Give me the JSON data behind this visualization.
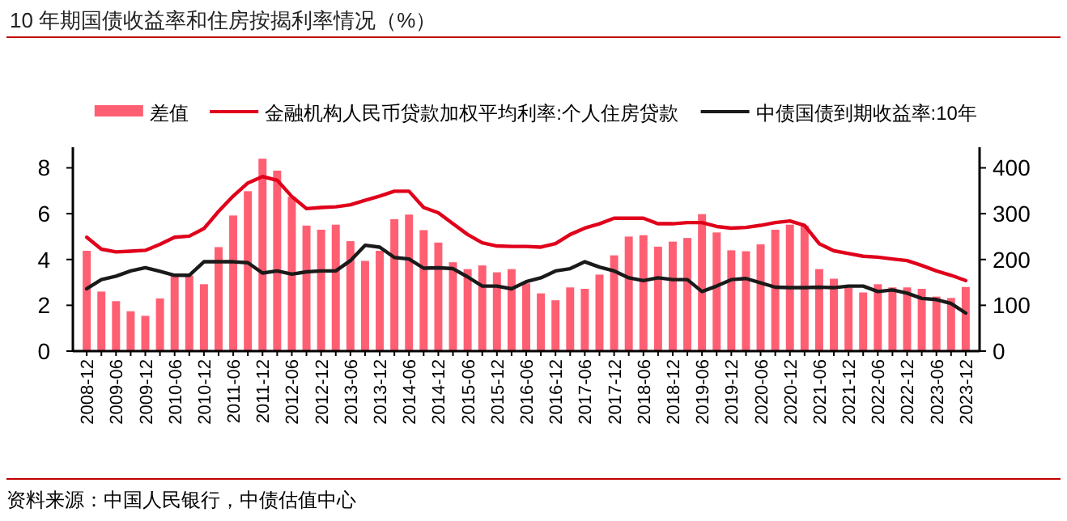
{
  "chart_data": {
    "type": "bar",
    "title": "10 年期国债收益率和住房按揭利率情况（%）",
    "annotations": [
      "资料来源：中国人民银行，中债估值中心"
    ],
    "categories": [
      "2008-12",
      null,
      "2009-06",
      null,
      "2009-12",
      null,
      "2010-06",
      null,
      "2010-12",
      null,
      "2011-06",
      null,
      "2011-12",
      null,
      "2012-06",
      null,
      "2012-12",
      null,
      "2013-06",
      null,
      "2013-12",
      null,
      "2014-06",
      null,
      "2014-12",
      null,
      "2015-06",
      null,
      "2015-12",
      null,
      "2016-06",
      null,
      "2016-12",
      null,
      "2017-06",
      null,
      "2017-12",
      null,
      "2018-06",
      null,
      "2018-12",
      null,
      "2019-06",
      null,
      "2019-12",
      null,
      "2020-06",
      null,
      "2020-12",
      null,
      "2021-06",
      null,
      "2021-12",
      null,
      "2022-06",
      null,
      "2022-12",
      null,
      "2023-06",
      null,
      "2023-12"
    ],
    "series": [
      {
        "name": "差值",
        "axis": "y2",
        "color": "#ff5f73",
        "values": [
          219,
          130,
          109,
          87,
          77,
          115,
          166,
          165,
          146,
          227,
          296,
          349,
          420,
          394,
          337,
          274,
          265,
          276,
          240,
          197,
          219,
          288,
          298,
          264,
          237,
          194,
          179,
          187,
          172,
          179,
          148,
          126,
          111,
          139,
          136,
          167,
          209,
          250,
          253,
          228,
          239,
          247,
          299,
          259,
          220,
          218,
          233,
          265,
          276,
          274,
          179,
          158,
          139,
          128,
          146,
          139,
          139,
          136,
          119,
          116,
          140
        ]
      },
      {
        "name": "金融机构人民币贷款加权平均利率:个人住房贷款",
        "type": "line",
        "color": "#e0001b",
        "values": [
          4.97,
          4.45,
          4.33,
          4.36,
          4.4,
          4.66,
          4.97,
          5.02,
          5.35,
          6.1,
          6.77,
          7.34,
          7.62,
          7.46,
          6.75,
          6.22,
          6.27,
          6.3,
          6.39,
          6.58,
          6.77,
          6.98,
          6.98,
          6.27,
          6.04,
          5.56,
          5.09,
          4.73,
          4.59,
          4.57,
          4.57,
          4.54,
          4.69,
          5.09,
          5.37,
          5.56,
          5.8,
          5.8,
          5.8,
          5.56,
          5.56,
          5.61,
          5.61,
          5.44,
          5.37,
          5.4,
          5.49,
          5.61,
          5.68,
          5.49,
          4.69,
          4.38,
          4.26,
          4.14,
          4.1,
          4.02,
          3.95,
          3.74,
          3.5,
          3.31,
          3.08
        ]
      },
      {
        "name": "中债国债到期收益率:10年",
        "type": "line",
        "color": "#1a1a1a",
        "values": [
          2.72,
          3.12,
          3.27,
          3.5,
          3.64,
          3.48,
          3.31,
          3.31,
          3.9,
          3.9,
          3.9,
          3.86,
          3.41,
          3.5,
          3.36,
          3.46,
          3.5,
          3.5,
          3.95,
          4.62,
          4.54,
          4.09,
          4.02,
          3.62,
          3.64,
          3.6,
          3.24,
          2.84,
          2.84,
          2.72,
          3.03,
          3.2,
          3.5,
          3.6,
          3.9,
          3.67,
          3.5,
          3.2,
          3.08,
          3.2,
          3.12,
          3.12,
          2.6,
          2.84,
          3.12,
          3.17,
          2.98,
          2.79,
          2.77,
          2.77,
          2.79,
          2.77,
          2.84,
          2.84,
          2.6,
          2.67,
          2.53,
          2.3,
          2.25,
          2.08,
          1.66
        ]
      }
    ],
    "ylim": [
      0,
      8.9
    ],
    "yticks": [
      0,
      2,
      4,
      6,
      8
    ],
    "y2lim": [
      0,
      445
    ],
    "y2ticks": [
      0,
      100,
      200,
      300,
      400
    ],
    "grid": false,
    "legend": "top"
  }
}
